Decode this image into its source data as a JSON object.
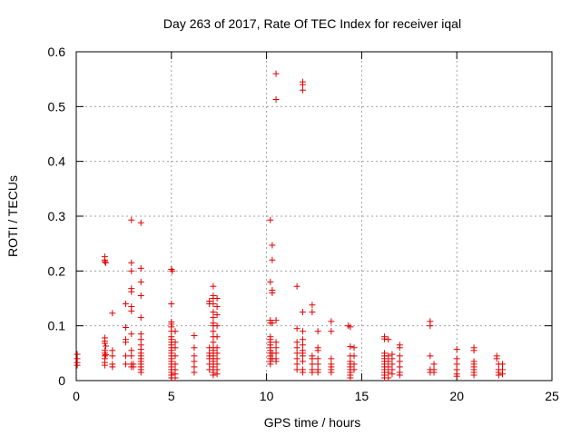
{
  "chart_data": {
    "type": "scatter",
    "title": "Day 263 of 2017, Rate Of TEC Index for receiver iqal",
    "xlabel": "GPS time / hours",
    "ylabel": "ROTI / TECUs",
    "xlim": [
      0,
      25
    ],
    "ylim": [
      0,
      0.6
    ],
    "xticks": [
      0,
      5,
      10,
      15,
      20,
      25
    ],
    "yticks": [
      0,
      0.1,
      0.2,
      0.3,
      0.4,
      0.5,
      0.6
    ],
    "ytick_labels": [
      "0",
      "0.1",
      "0.2",
      "0.3",
      "0.4",
      "0.5",
      "0.6"
    ],
    "grid": true,
    "marker": "+",
    "color": "#e00000",
    "points": [
      [
        0.05,
        0.048
      ],
      [
        0.05,
        0.04
      ],
      [
        0.05,
        0.033
      ],
      [
        0.05,
        0.028
      ],
      [
        1.5,
        0.226
      ],
      [
        1.5,
        0.22
      ],
      [
        1.5,
        0.217
      ],
      [
        1.55,
        0.215
      ],
      [
        1.5,
        0.078
      ],
      [
        1.5,
        0.072
      ],
      [
        1.5,
        0.068
      ],
      [
        1.55,
        0.063
      ],
      [
        1.5,
        0.055
      ],
      [
        1.5,
        0.05
      ],
      [
        1.55,
        0.047
      ],
      [
        1.5,
        0.045
      ],
      [
        1.5,
        0.04
      ],
      [
        1.5,
        0.033
      ],
      [
        1.5,
        0.028
      ],
      [
        1.9,
        0.123
      ],
      [
        1.9,
        0.055
      ],
      [
        1.9,
        0.045
      ],
      [
        1.9,
        0.03
      ],
      [
        1.9,
        0.025
      ],
      [
        2.6,
        0.14
      ],
      [
        2.6,
        0.097
      ],
      [
        2.6,
        0.075
      ],
      [
        2.6,
        0.07
      ],
      [
        2.6,
        0.045
      ],
      [
        2.6,
        0.03
      ],
      [
        2.9,
        0.293
      ],
      [
        2.9,
        0.215
      ],
      [
        2.9,
        0.2
      ],
      [
        2.9,
        0.168
      ],
      [
        2.9,
        0.162
      ],
      [
        2.9,
        0.135
      ],
      [
        2.9,
        0.127
      ],
      [
        2.9,
        0.085
      ],
      [
        2.9,
        0.055
      ],
      [
        2.9,
        0.045
      ],
      [
        2.9,
        0.03
      ],
      [
        2.9,
        0.025
      ],
      [
        3.0,
        0.03
      ],
      [
        3.0,
        0.025
      ],
      [
        3.4,
        0.288
      ],
      [
        3.4,
        0.205
      ],
      [
        3.4,
        0.18
      ],
      [
        3.4,
        0.155
      ],
      [
        3.4,
        0.115
      ],
      [
        3.4,
        0.085
      ],
      [
        3.4,
        0.075
      ],
      [
        3.4,
        0.065
      ],
      [
        3.4,
        0.057
      ],
      [
        3.4,
        0.05
      ],
      [
        3.4,
        0.045
      ],
      [
        3.4,
        0.04
      ],
      [
        3.4,
        0.035
      ],
      [
        3.4,
        0.03
      ],
      [
        3.4,
        0.025
      ],
      [
        3.4,
        0.02
      ],
      [
        3.4,
        0.015
      ],
      [
        5.0,
        0.203
      ],
      [
        5.05,
        0.2
      ],
      [
        5.0,
        0.14
      ],
      [
        5.0,
        0.107
      ],
      [
        5.0,
        0.103
      ],
      [
        5.0,
        0.098
      ],
      [
        5.0,
        0.09
      ],
      [
        5.0,
        0.08
      ],
      [
        5.0,
        0.075
      ],
      [
        5.0,
        0.07
      ],
      [
        5.0,
        0.065
      ],
      [
        5.0,
        0.06
      ],
      [
        5.0,
        0.055
      ],
      [
        5.0,
        0.05
      ],
      [
        5.0,
        0.045
      ],
      [
        5.0,
        0.04
      ],
      [
        5.0,
        0.035
      ],
      [
        5.0,
        0.03
      ],
      [
        5.0,
        0.025
      ],
      [
        5.0,
        0.02
      ],
      [
        5.0,
        0.015
      ],
      [
        5.0,
        0.01
      ],
      [
        5.0,
        0.005
      ],
      [
        5.2,
        0.09
      ],
      [
        5.2,
        0.07
      ],
      [
        5.2,
        0.06
      ],
      [
        5.2,
        0.045
      ],
      [
        5.2,
        0.03
      ],
      [
        5.2,
        0.02
      ],
      [
        5.2,
        0.012
      ],
      [
        5.2,
        0.005
      ],
      [
        6.2,
        0.082
      ],
      [
        6.2,
        0.06
      ],
      [
        6.2,
        0.045
      ],
      [
        6.2,
        0.035
      ],
      [
        6.2,
        0.025
      ],
      [
        6.2,
        0.015
      ],
      [
        7.0,
        0.145
      ],
      [
        7.0,
        0.14
      ],
      [
        7.0,
        0.06
      ],
      [
        7.0,
        0.05
      ],
      [
        7.0,
        0.045
      ],
      [
        7.0,
        0.04
      ],
      [
        7.0,
        0.03
      ],
      [
        7.0,
        0.02
      ],
      [
        7.2,
        0.172
      ],
      [
        7.2,
        0.155
      ],
      [
        7.2,
        0.15
      ],
      [
        7.2,
        0.14
      ],
      [
        7.2,
        0.125
      ],
      [
        7.2,
        0.115
      ],
      [
        7.2,
        0.105
      ],
      [
        7.2,
        0.1
      ],
      [
        7.2,
        0.09
      ],
      [
        7.2,
        0.08
      ],
      [
        7.2,
        0.07
      ],
      [
        7.2,
        0.06
      ],
      [
        7.2,
        0.055
      ],
      [
        7.2,
        0.05
      ],
      [
        7.2,
        0.045
      ],
      [
        7.2,
        0.04
      ],
      [
        7.2,
        0.035
      ],
      [
        7.2,
        0.03
      ],
      [
        7.2,
        0.025
      ],
      [
        7.2,
        0.02
      ],
      [
        7.2,
        0.015
      ],
      [
        7.2,
        0.01
      ],
      [
        7.4,
        0.15
      ],
      [
        7.4,
        0.135
      ],
      [
        7.4,
        0.12
      ],
      [
        7.4,
        0.1
      ],
      [
        7.4,
        0.08
      ],
      [
        7.4,
        0.06
      ],
      [
        7.4,
        0.05
      ],
      [
        7.4,
        0.04
      ],
      [
        7.4,
        0.03
      ],
      [
        7.4,
        0.02
      ],
      [
        7.4,
        0.012
      ],
      [
        10.2,
        0.293
      ],
      [
        10.2,
        0.18
      ],
      [
        10.2,
        0.11
      ],
      [
        10.2,
        0.105
      ],
      [
        10.2,
        0.08
      ],
      [
        10.2,
        0.075
      ],
      [
        10.2,
        0.07
      ],
      [
        10.2,
        0.065
      ],
      [
        10.2,
        0.06
      ],
      [
        10.2,
        0.055
      ],
      [
        10.2,
        0.05
      ],
      [
        10.2,
        0.045
      ],
      [
        10.2,
        0.04
      ],
      [
        10.2,
        0.035
      ],
      [
        10.2,
        0.03
      ],
      [
        10.3,
        0.247
      ],
      [
        10.3,
        0.22
      ],
      [
        10.3,
        0.165
      ],
      [
        10.3,
        0.16
      ],
      [
        10.3,
        0.105
      ],
      [
        10.3,
        0.05
      ],
      [
        10.3,
        0.04
      ],
      [
        10.5,
        0.56
      ],
      [
        10.5,
        0.513
      ],
      [
        10.5,
        0.11
      ],
      [
        10.5,
        0.07
      ],
      [
        10.5,
        0.06
      ],
      [
        10.5,
        0.05
      ],
      [
        10.5,
        0.04
      ],
      [
        10.5,
        0.035
      ],
      [
        11.6,
        0.172
      ],
      [
        11.6,
        0.095
      ],
      [
        11.6,
        0.07
      ],
      [
        11.6,
        0.06
      ],
      [
        11.6,
        0.05
      ],
      [
        11.6,
        0.04
      ],
      [
        11.6,
        0.03
      ],
      [
        11.6,
        0.02
      ],
      [
        11.9,
        0.545
      ],
      [
        11.9,
        0.54
      ],
      [
        11.9,
        0.53
      ],
      [
        11.9,
        0.125
      ],
      [
        11.9,
        0.09
      ],
      [
        11.9,
        0.075
      ],
      [
        11.9,
        0.065
      ],
      [
        11.9,
        0.055
      ],
      [
        11.9,
        0.05
      ],
      [
        11.9,
        0.045
      ],
      [
        11.9,
        0.035
      ],
      [
        11.9,
        0.02
      ],
      [
        11.9,
        0.015
      ],
      [
        12.4,
        0.138
      ],
      [
        12.4,
        0.125
      ],
      [
        12.4,
        0.045
      ],
      [
        12.4,
        0.04
      ],
      [
        12.4,
        0.03
      ],
      [
        12.4,
        0.02
      ],
      [
        12.4,
        0.015
      ],
      [
        12.7,
        0.09
      ],
      [
        12.7,
        0.06
      ],
      [
        12.7,
        0.055
      ],
      [
        12.7,
        0.04
      ],
      [
        12.7,
        0.03
      ],
      [
        12.7,
        0.02
      ],
      [
        12.7,
        0.015
      ],
      [
        13.4,
        0.108
      ],
      [
        13.4,
        0.09
      ],
      [
        13.4,
        0.04
      ],
      [
        13.4,
        0.03
      ],
      [
        13.4,
        0.025
      ],
      [
        13.4,
        0.02
      ],
      [
        13.4,
        0.015
      ],
      [
        14.3,
        0.1
      ],
      [
        14.4,
        0.098
      ],
      [
        14.4,
        0.062
      ],
      [
        14.4,
        0.045
      ],
      [
        14.4,
        0.035
      ],
      [
        14.4,
        0.03
      ],
      [
        14.4,
        0.025
      ],
      [
        14.4,
        0.02
      ],
      [
        14.4,
        0.015
      ],
      [
        14.4,
        0.01
      ],
      [
        14.4,
        0.005
      ],
      [
        14.6,
        0.06
      ],
      [
        14.6,
        0.045
      ],
      [
        14.6,
        0.03
      ],
      [
        14.6,
        0.02
      ],
      [
        16.2,
        0.08
      ],
      [
        16.2,
        0.076
      ],
      [
        16.2,
        0.05
      ],
      [
        16.2,
        0.045
      ],
      [
        16.2,
        0.04
      ],
      [
        16.2,
        0.035
      ],
      [
        16.2,
        0.03
      ],
      [
        16.2,
        0.025
      ],
      [
        16.2,
        0.02
      ],
      [
        16.2,
        0.015
      ],
      [
        16.2,
        0.01
      ],
      [
        16.2,
        0.005
      ],
      [
        16.4,
        0.075
      ],
      [
        16.4,
        0.045
      ],
      [
        16.4,
        0.035
      ],
      [
        16.4,
        0.025
      ],
      [
        16.4,
        0.015
      ],
      [
        16.4,
        0.005
      ],
      [
        16.6,
        0.048
      ],
      [
        16.6,
        0.04
      ],
      [
        16.6,
        0.03
      ],
      [
        16.6,
        0.02
      ],
      [
        16.6,
        0.012
      ],
      [
        17.0,
        0.065
      ],
      [
        17.0,
        0.06
      ],
      [
        17.0,
        0.045
      ],
      [
        17.0,
        0.035
      ],
      [
        17.0,
        0.025
      ],
      [
        17.0,
        0.015
      ],
      [
        17.0,
        0.01
      ],
      [
        18.6,
        0.108
      ],
      [
        18.6,
        0.1
      ],
      [
        18.6,
        0.045
      ],
      [
        18.6,
        0.02
      ],
      [
        18.6,
        0.015
      ],
      [
        18.8,
        0.03
      ],
      [
        18.8,
        0.02
      ],
      [
        18.8,
        0.015
      ],
      [
        20.0,
        0.057
      ],
      [
        20.0,
        0.04
      ],
      [
        20.0,
        0.03
      ],
      [
        20.0,
        0.02
      ],
      [
        20.0,
        0.012
      ],
      [
        20.0,
        0.008
      ],
      [
        20.9,
        0.06
      ],
      [
        20.9,
        0.055
      ],
      [
        20.9,
        0.035
      ],
      [
        20.9,
        0.03
      ],
      [
        20.9,
        0.025
      ],
      [
        20.9,
        0.02
      ],
      [
        20.9,
        0.015
      ],
      [
        20.9,
        0.01
      ],
      [
        22.1,
        0.045
      ],
      [
        22.1,
        0.04
      ],
      [
        22.2,
        0.03
      ],
      [
        22.2,
        0.02
      ],
      [
        22.2,
        0.015
      ],
      [
        22.2,
        0.01
      ],
      [
        22.4,
        0.03
      ],
      [
        22.4,
        0.02
      ],
      [
        22.4,
        0.012
      ]
    ]
  }
}
